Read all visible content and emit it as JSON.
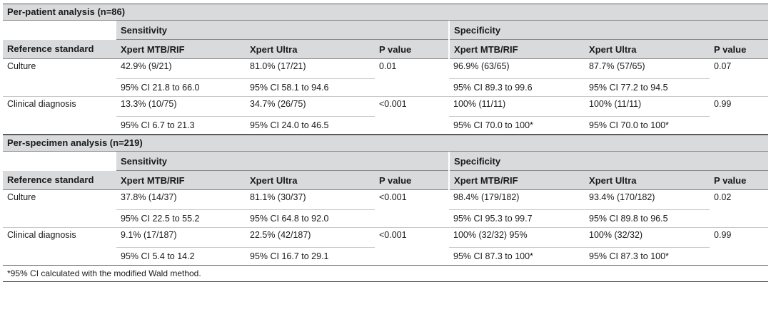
{
  "sections": [
    {
      "title": "Per-patient analysis (n=86)",
      "group_sensitivity": "Sensitivity",
      "group_specificity": "Specificity",
      "headers": [
        "Reference standard",
        "Xpert MTB/RIF",
        "Xpert Ultra",
        "P value",
        "Xpert MTB/RIF",
        "Xpert Ultra",
        "P value"
      ],
      "rows": [
        {
          "label": "Culture",
          "sens_mtb": "42.9% (9/21)",
          "sens_mtb_ci": "95% CI 21.8 to 66.0",
          "sens_ultra": "81.0% (17/21)",
          "sens_ultra_ci": "95% CI 58.1 to 94.6",
          "sens_p": "0.01",
          "spec_mtb": "96.9% (63/65)",
          "spec_mtb_ci": "95% CI 89.3 to 99.6",
          "spec_ultra": "87.7% (57/65)",
          "spec_ultra_ci": "95% CI 77.2 to 94.5",
          "spec_p": "0.07"
        },
        {
          "label": "Clinical diagnosis",
          "sens_mtb": "13.3% (10/75)",
          "sens_mtb_ci": "95% CI 6.7 to 21.3",
          "sens_ultra": "34.7% (26/75)",
          "sens_ultra_ci": "95% CI 24.0 to 46.5",
          "sens_p": "<0.001",
          "spec_mtb": "100% (11/11)",
          "spec_mtb_ci": "95% CI 70.0 to 100*",
          "spec_ultra": "100% (11/11)",
          "spec_ultra_ci": "95% CI 70.0 to 100*",
          "spec_p": "0.99"
        }
      ]
    },
    {
      "title": "Per-specimen analysis (n=219)",
      "group_sensitivity": "Sensitivity",
      "group_specificity": "Specificity",
      "headers": [
        "Reference standard",
        "Xpert MTB/RIF",
        "Xpert Ultra",
        "P value",
        "Xpert MTB/RIF",
        "Xpert Ultra",
        "P value"
      ],
      "rows": [
        {
          "label": "Culture",
          "sens_mtb": "37.8% (14/37)",
          "sens_mtb_ci": "95% CI 22.5 to 55.2",
          "sens_ultra": "81.1% (30/37)",
          "sens_ultra_ci": "95% CI 64.8 to 92.0",
          "sens_p": "<0.001",
          "spec_mtb": "98.4% (179/182)",
          "spec_mtb_ci": "95% CI 95.3 to 99.7",
          "spec_ultra": "93.4% (170/182)",
          "spec_ultra_ci": "95% CI 89.8 to 96.5",
          "spec_p": "0.02"
        },
        {
          "label": "Clinical diagnosis",
          "sens_mtb": "9.1% (17/187)",
          "sens_mtb_ci": "95% CI 5.4 to 14.2",
          "sens_ultra": "22.5% (42/187)",
          "sens_ultra_ci": "95% CI 16.7 to 29.1",
          "sens_p": "<0.001",
          "spec_mtb": "100% (32/32) 95%",
          "spec_mtb_ci": "95% CI 87.3 to 100*",
          "spec_ultra": "100% (32/32)",
          "spec_ultra_ci": "95% CI 87.3 to 100*",
          "spec_p": "0.99"
        }
      ]
    }
  ],
  "footnote": "*95% CI calculated with the modified Wald method."
}
